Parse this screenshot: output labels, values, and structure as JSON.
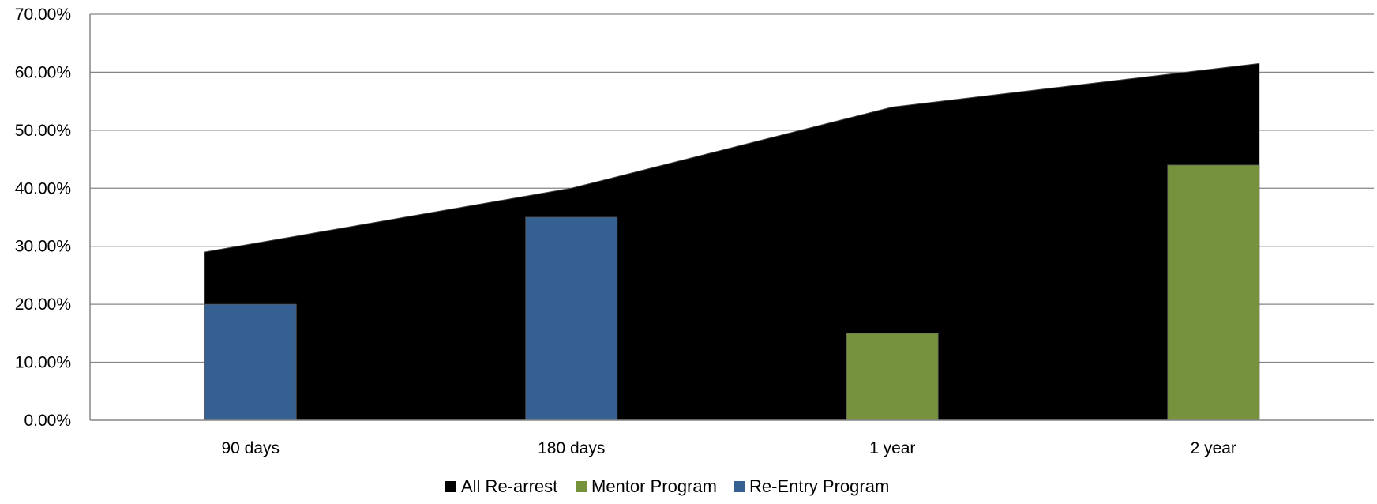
{
  "chart_data": {
    "type": "bar",
    "categories": [
      "90 days",
      "180 days",
      "1 year",
      "2 year"
    ],
    "ylim": [
      0,
      0.7
    ],
    "y_ticks": [
      "0.00%",
      "10.00%",
      "20.00%",
      "30.00%",
      "40.00%",
      "50.00%",
      "60.00%",
      "70.00%"
    ],
    "grid": true,
    "legend_position": "bottom",
    "series": [
      {
        "name": "All Re-arrest",
        "type": "area",
        "color": "#000000",
        "values": [
          0.29,
          0.4,
          0.54,
          0.615
        ]
      },
      {
        "name": "Mentor Program",
        "type": "bar",
        "color": "#76923C",
        "values": [
          null,
          null,
          0.15,
          0.44
        ]
      },
      {
        "name": "Re-Entry Program",
        "type": "bar",
        "color": "#366092",
        "values": [
          0.2,
          0.35,
          null,
          null
        ]
      }
    ]
  }
}
